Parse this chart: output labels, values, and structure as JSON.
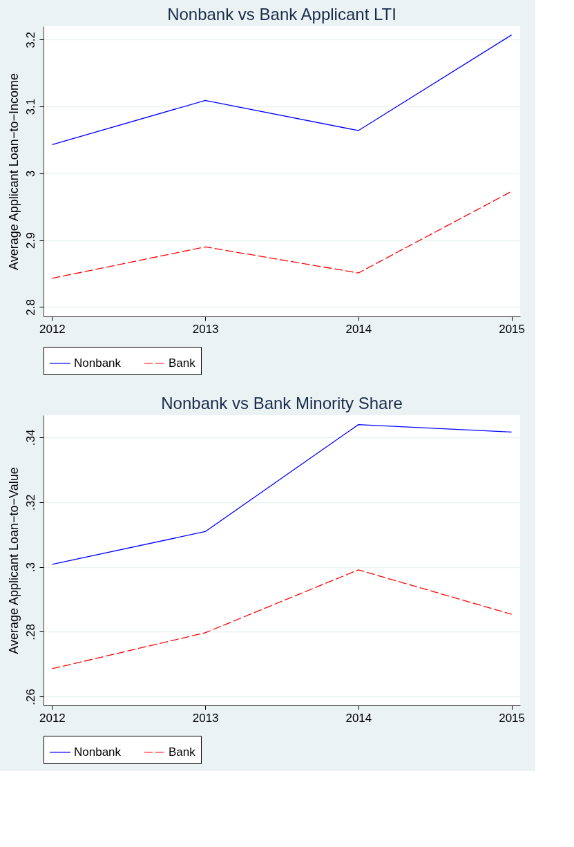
{
  "chart_data": [
    {
      "type": "line",
      "title": "Nonbank vs Bank Applicant LTI",
      "ylabel": "Average Applicant Loan−to−Income",
      "x": [
        2012,
        2013,
        2014,
        2015
      ],
      "xlim": [
        2011.944,
        2015.056
      ],
      "xticks": [
        2012,
        2013,
        2014,
        2015
      ],
      "ylim": [
        2.786,
        3.22
      ],
      "yticks": [
        2.8,
        2.9,
        3,
        3.1,
        3.2
      ],
      "grid": "y",
      "legend": "bottom",
      "series": [
        {
          "name": "Nonbank",
          "color": "#0000ff",
          "line_style": "solid",
          "values": [
            3.043,
            3.109,
            3.064,
            3.207
          ]
        },
        {
          "name": "Bank",
          "color": "#ff0000",
          "line_style": "dashed",
          "values": [
            2.843,
            2.89,
            2.851,
            2.973
          ]
        }
      ]
    },
    {
      "type": "line",
      "title": "Nonbank vs Bank Minority Share",
      "ylabel": "Average Applicant Loan−to−Value",
      "x": [
        2012,
        2013,
        2014,
        2015
      ],
      "xlim": [
        2011.944,
        2015.056
      ],
      "xticks": [
        2012,
        2013,
        2014,
        2015
      ],
      "ylim": [
        0.2573,
        0.3468
      ],
      "yticks": [
        {
          "value": 0.26,
          "label": ".26"
        },
        {
          "value": 0.28,
          "label": ".28"
        },
        {
          "value": 0.3,
          "label": ".3"
        },
        {
          "value": 0.32,
          "label": ".32"
        },
        {
          "value": 0.34,
          "label": ".34"
        }
      ],
      "grid": "y",
      "legend": "bottom",
      "series": [
        {
          "name": "Nonbank",
          "color": "#0000ff",
          "line_style": "solid",
          "values": [
            0.3008,
            0.3109,
            0.3439,
            0.3416
          ]
        },
        {
          "name": "Bank",
          "color": "#ff0000",
          "line_style": "dashed",
          "values": [
            0.2686,
            0.2797,
            0.2991,
            0.2854
          ]
        }
      ]
    }
  ]
}
